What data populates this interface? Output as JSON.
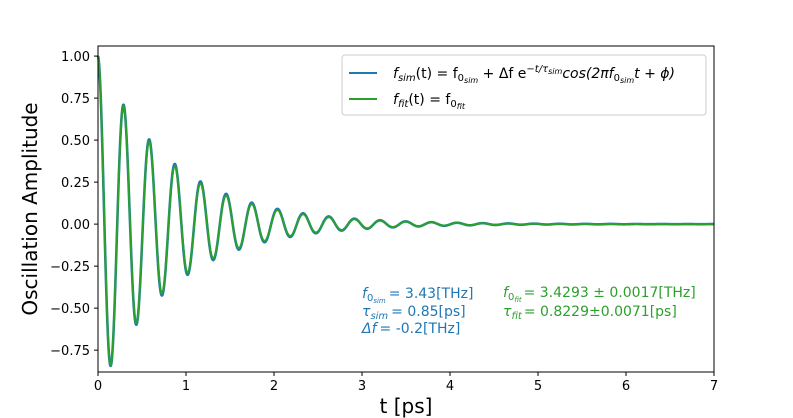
{
  "chart_data": {
    "type": "line",
    "title": "",
    "xlabel": "t [ps]",
    "ylabel": "Oscillation Amplitude",
    "xlim": [
      0,
      7
    ],
    "ylim": [
      -0.88,
      1.06
    ],
    "xticks": [
      0,
      1,
      2,
      3,
      4,
      5,
      6,
      7
    ],
    "yticks": [
      -0.75,
      -0.5,
      -0.25,
      0.0,
      0.25,
      0.5,
      0.75,
      1.0
    ],
    "xtick_labels": [
      "0",
      "1",
      "2",
      "3",
      "4",
      "5",
      "6",
      "7"
    ],
    "ytick_labels": [
      "−0.75",
      "−0.50",
      "−0.25",
      "0.00",
      "0.25",
      "0.50",
      "0.75",
      "1.00"
    ],
    "grid": false,
    "legend_position": "top-right",
    "series": [
      {
        "legend_parts": [
          "f",
          "sim",
          "(t) = f",
          "0",
          "sim",
          " + Δf e",
          "−t/τ",
          "sim",
          "cos(2πf",
          "0",
          "sim",
          "t + ϕ)"
        ],
        "color": "#1f77b4",
        "model": {
          "f0_THz": 3.43,
          "tau_ps": 0.85,
          "delta_f_THz": -0.2,
          "amplitude": 1.0,
          "t_start": 0,
          "t_end": 7
        }
      },
      {
        "legend_parts": [
          "f",
          "fit",
          "(t) = f",
          "0",
          "fit"
        ],
        "color": "#2ca02c",
        "model": {
          "f0_THz": 3.4293,
          "tau_ps": 0.8229,
          "amplitude": 1.0,
          "t_start": 0,
          "t_end": 7
        }
      }
    ],
    "annotations": {
      "sim": {
        "color": "#1f77b4",
        "f0": {
          "sym": "f",
          "sub0": "0",
          "sub1": "sim",
          "text": "= 3.43[THz]"
        },
        "tau": {
          "sym": "τ",
          "sub": "sim",
          "text": "= 0.85[ps]"
        },
        "df": {
          "sym": "Δf",
          "text": "= -0.2[THz]"
        }
      },
      "fit": {
        "color": "#2ca02c",
        "f0": {
          "sym": "f",
          "sub0": "0",
          "sub1": "fit",
          "text": "= 3.4293 ± 0.0017[THz]"
        },
        "tau": {
          "sym": "τ",
          "sub": "fit",
          "text": "= 0.8229±0.0071[ps]"
        }
      }
    }
  }
}
